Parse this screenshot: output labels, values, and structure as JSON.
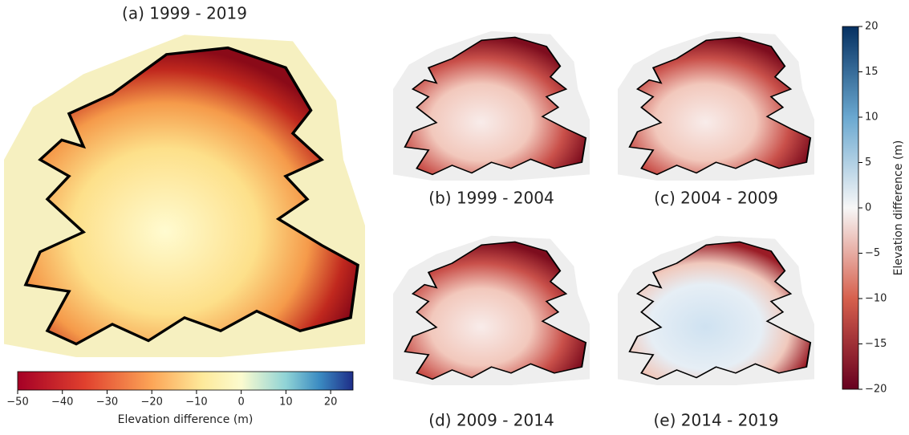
{
  "panels": [
    {
      "title": "(a) 1999 - 2019"
    },
    {
      "title": "(b) 1999 - 2004"
    },
    {
      "title": "(c) 2004 - 2009"
    },
    {
      "title": "(d) 2009 - 2014"
    },
    {
      "title": "(e) 2014 - 2019"
    }
  ],
  "colorbars": [
    {
      "label": "Elevation difference (m)",
      "lim": [
        -50,
        25
      ],
      "ticks": [
        {
          "value": -50,
          "label": "−50"
        },
        {
          "value": -40,
          "label": "−40"
        },
        {
          "value": -30,
          "label": "−30"
        },
        {
          "value": -20,
          "label": "−20"
        },
        {
          "value": -10,
          "label": "−10"
        },
        0,
        10,
        20
      ]
    },
    {
      "label": "Elevation difference (m)",
      "lim": [
        -20,
        20
      ],
      "ticks": [
        {
          "value": -20,
          "label": "−20"
        },
        {
          "value": -15,
          "label": "−15"
        },
        {
          "value": -10,
          "label": "−10"
        },
        {
          "value": -5,
          "label": "−5"
        },
        0,
        5,
        10,
        15,
        20
      ]
    }
  ]
}
